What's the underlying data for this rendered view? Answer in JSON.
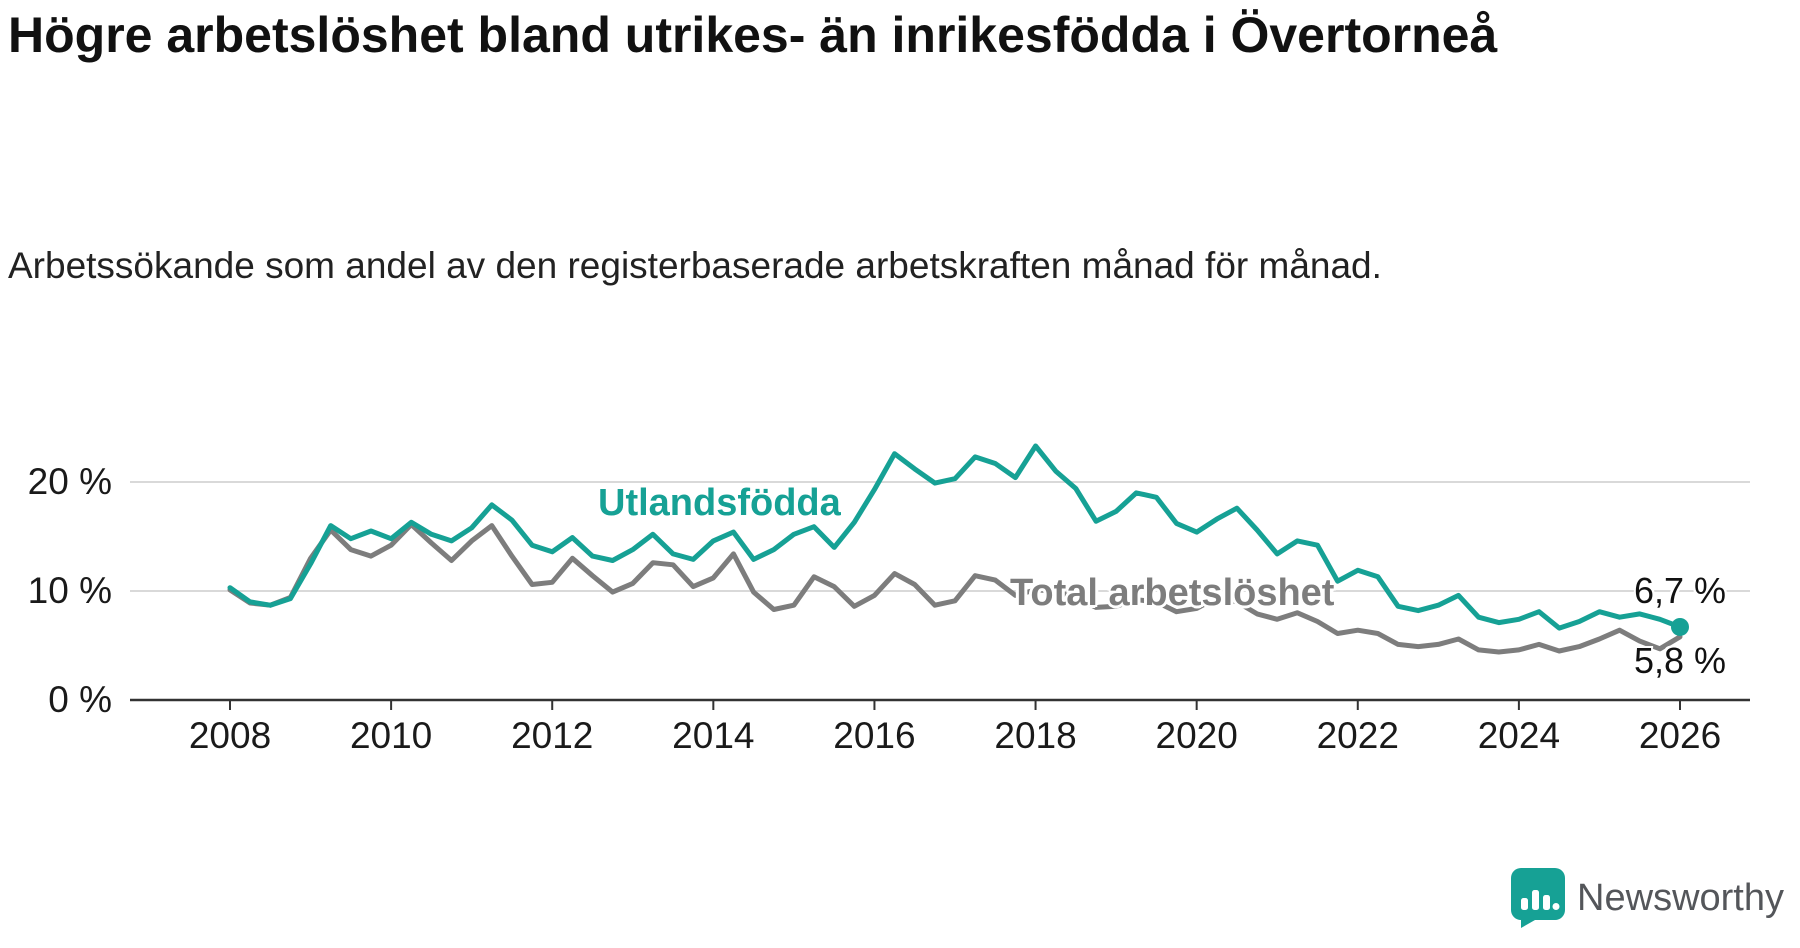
{
  "header": {
    "title": "Högre arbetslöshet bland utrikes- än inrikesfödda i Övertorneå",
    "subtitle": "Arbetssökande som andel av den registerbaserade arbetskraften månad för månad."
  },
  "colors": {
    "teal": "#16a195",
    "gray": "#7d7d7d",
    "grid": "#d9d9d9",
    "axis": "#333333",
    "text": "#1a1a1a",
    "brand_text": "#54565a"
  },
  "chart_data": {
    "type": "line",
    "title": "Högre arbetslöshet bland utrikes- än inrikesfödda i Övertorneå",
    "subtitle": "Arbetssökande som andel av den registerbaserade arbetskraften månad för månad.",
    "unit": "%",
    "grid": "horizontal",
    "legend": "inline-labels",
    "xlim": [
      2007.5,
      2026.5
    ],
    "ylim": [
      0,
      24
    ],
    "x_start": 2008,
    "x_step": 0.25,
    "x_ticks": [
      "2008",
      "2010",
      "2012",
      "2014",
      "2016",
      "2018",
      "2020",
      "2022",
      "2024",
      "2026"
    ],
    "y_ticks": [
      {
        "value": 0,
        "label": "0 %"
      },
      {
        "value": 10,
        "label": "10 %"
      },
      {
        "value": 20,
        "label": "20 %"
      }
    ],
    "series": [
      {
        "name": "Utlandsfödda",
        "color": "#16a195",
        "end_label": "6,7 %",
        "end_value": 6.7,
        "end_dot": true,
        "values": [
          10.3,
          9.0,
          8.7,
          9.3,
          12.5,
          16.0,
          14.8,
          15.5,
          14.8,
          16.3,
          15.2,
          14.6,
          15.8,
          17.9,
          16.5,
          14.2,
          13.6,
          14.9,
          13.2,
          12.8,
          13.8,
          15.2,
          13.4,
          12.9,
          14.6,
          15.4,
          12.9,
          13.8,
          15.2,
          15.9,
          14.0,
          16.3,
          19.3,
          22.6,
          21.2,
          19.9,
          20.3,
          22.3,
          21.7,
          20.4,
          23.3,
          21.0,
          19.4,
          16.4,
          17.3,
          19.0,
          18.6,
          16.2,
          15.4,
          16.6,
          17.6,
          15.6,
          13.4,
          14.6,
          14.2,
          10.9,
          11.9,
          11.3,
          8.6,
          8.2,
          8.7,
          9.6,
          7.6,
          7.1,
          7.4,
          8.1,
          6.6,
          7.2,
          8.1,
          7.6,
          7.9,
          7.4,
          6.7
        ]
      },
      {
        "name": "Total arbetslöshet",
        "color": "#7d7d7d",
        "end_label": "5,8 %",
        "end_value": 5.8,
        "end_dot": false,
        "values": [
          10.1,
          8.9,
          8.7,
          9.4,
          13.0,
          15.6,
          13.8,
          13.2,
          14.2,
          16.1,
          14.4,
          12.8,
          14.6,
          16.0,
          13.2,
          10.6,
          10.8,
          13.0,
          11.4,
          9.9,
          10.7,
          12.6,
          12.4,
          10.4,
          11.2,
          13.4,
          9.9,
          8.3,
          8.7,
          11.3,
          10.4,
          8.6,
          9.6,
          11.6,
          10.6,
          8.7,
          9.1,
          11.4,
          11.0,
          9.6,
          10.1,
          10.0,
          9.4,
          8.5,
          8.6,
          9.2,
          9.0,
          8.1,
          8.4,
          9.4,
          9.0,
          7.9,
          7.4,
          8.0,
          7.2,
          6.1,
          6.4,
          6.1,
          5.1,
          4.9,
          5.1,
          5.6,
          4.6,
          4.4,
          4.6,
          5.1,
          4.5,
          4.9,
          5.6,
          6.4,
          5.4,
          4.7,
          5.8
        ]
      }
    ]
  },
  "footer": {
    "brand": "Newsworthy"
  }
}
